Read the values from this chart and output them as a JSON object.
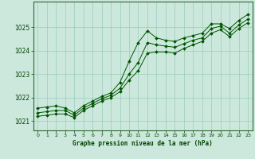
{
  "title": "Graphe pression niveau de la mer (hPa)",
  "bg_color": "#cce8dd",
  "grid_color": "#99ccbb",
  "line_color": "#005500",
  "marker_color": "#005500",
  "axis_color": "#005500",
  "label_color": "#004400",
  "border_color": "#336633",
  "xlim": [
    -0.5,
    23.5
  ],
  "ylim": [
    1020.6,
    1026.1
  ],
  "yticks": [
    1021,
    1022,
    1023,
    1024,
    1025
  ],
  "xticks": [
    0,
    1,
    2,
    3,
    4,
    5,
    6,
    7,
    8,
    9,
    10,
    11,
    12,
    13,
    14,
    15,
    16,
    17,
    18,
    19,
    20,
    21,
    22,
    23
  ],
  "series1_x": [
    0,
    1,
    2,
    3,
    4,
    5,
    6,
    7,
    8,
    9,
    10,
    11,
    12,
    13,
    14,
    15,
    16,
    17,
    18,
    19,
    20,
    21,
    22,
    23
  ],
  "series1_y": [
    1021.55,
    1021.6,
    1021.65,
    1021.55,
    1021.35,
    1021.65,
    1021.85,
    1022.05,
    1022.2,
    1022.65,
    1023.55,
    1024.35,
    1024.85,
    1024.55,
    1024.45,
    1024.4,
    1024.55,
    1024.65,
    1024.75,
    1025.15,
    1025.15,
    1024.95,
    1025.3,
    1025.55
  ],
  "series2_x": [
    0,
    1,
    2,
    3,
    4,
    5,
    6,
    7,
    8,
    9,
    10,
    11,
    12,
    13,
    14,
    15,
    16,
    17,
    18,
    19,
    20,
    21,
    22,
    23
  ],
  "series2_y": [
    1021.35,
    1021.4,
    1021.45,
    1021.45,
    1021.25,
    1021.55,
    1021.75,
    1021.95,
    1022.1,
    1022.4,
    1023.0,
    1023.5,
    1024.35,
    1024.25,
    1024.2,
    1024.15,
    1024.3,
    1024.45,
    1024.55,
    1024.95,
    1025.05,
    1024.75,
    1025.1,
    1025.35
  ],
  "series3_x": [
    0,
    1,
    2,
    3,
    4,
    5,
    6,
    7,
    8,
    9,
    10,
    11,
    12,
    13,
    14,
    15,
    16,
    17,
    18,
    19,
    20,
    21,
    22,
    23
  ],
  "series3_y": [
    1021.2,
    1021.25,
    1021.3,
    1021.3,
    1021.15,
    1021.45,
    1021.65,
    1021.85,
    1022.0,
    1022.25,
    1022.75,
    1023.15,
    1023.9,
    1023.95,
    1023.95,
    1023.9,
    1024.1,
    1024.25,
    1024.4,
    1024.75,
    1024.9,
    1024.6,
    1024.95,
    1025.2
  ]
}
